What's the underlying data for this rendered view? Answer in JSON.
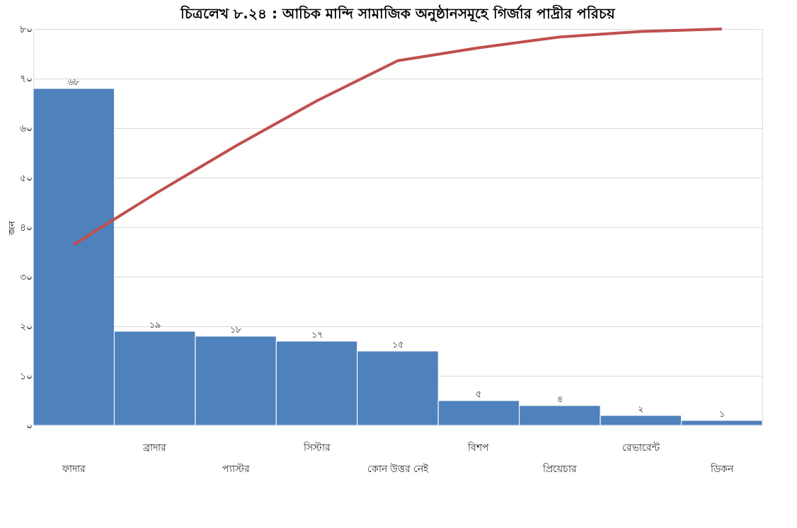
{
  "chart_data": {
    "type": "bar",
    "title": "চিত্রলেখ ৮.২৪ : আচিক মান্দি সামাজিক অনুষ্ঠানসমূহে গির্জার পাদ্রীর পরিচয়",
    "ylabel": "জন",
    "categories": [
      "ফাদার",
      "ব্রাদার",
      "প্যাস্টর",
      "সিস্টার",
      "কোন উত্তর নেই",
      "বিশপ",
      "প্রিয়েচার",
      "রেভারেন্ট",
      "ডিকন"
    ],
    "series": [
      {
        "color": "#4f81bd",
        "values": [
          68,
          19,
          18,
          17,
          15,
          5,
          4,
          2,
          1
        ],
        "value_labels": [
          "৬৮",
          "১৯",
          "১৮",
          "১৭",
          "১৫",
          "৫",
          "৪",
          "২",
          "১"
        ]
      },
      {
        "type": "line",
        "color": "#c0504d",
        "values": [
          36.5,
          46.7,
          56.4,
          65.5,
          73.6,
          76.2,
          78.4,
          79.5,
          80
        ]
      }
    ],
    "ylim": [
      0,
      80
    ],
    "yticks": [
      {
        "value": 0,
        "label": "০"
      },
      {
        "value": 10,
        "label": "১০"
      },
      {
        "value": 20,
        "label": "২০"
      },
      {
        "value": 30,
        "label": "৩০"
      },
      {
        "value": 40,
        "label": "৪০"
      },
      {
        "value": 50,
        "label": "৫০"
      },
      {
        "value": 60,
        "label": "৬০"
      },
      {
        "value": 70,
        "label": "৭০"
      },
      {
        "value": 80,
        "label": "৮০"
      }
    ],
    "grid": "y"
  }
}
